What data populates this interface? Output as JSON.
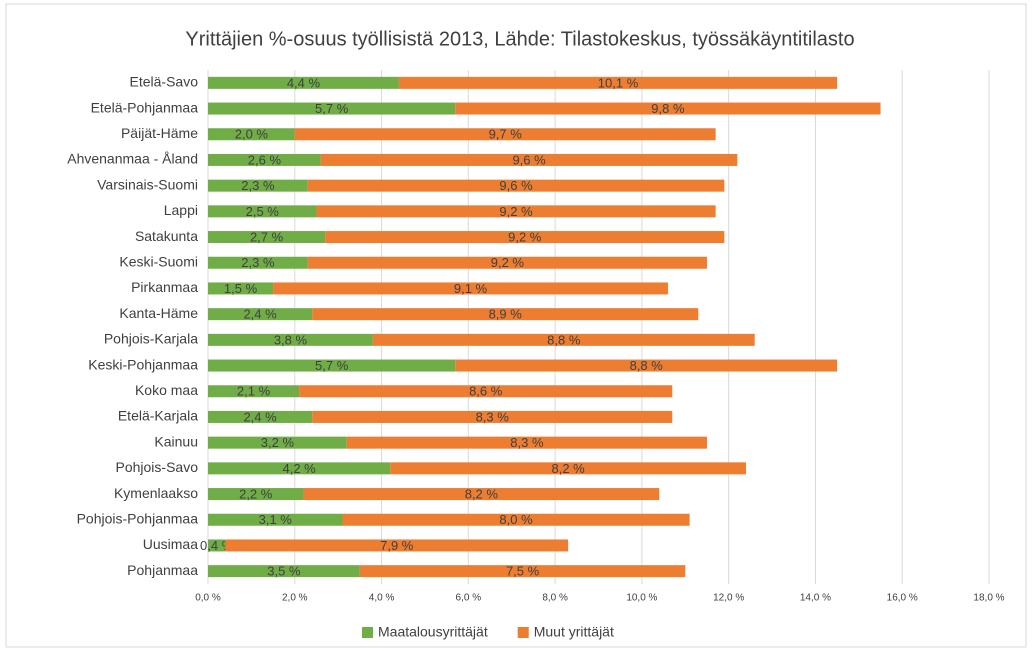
{
  "chart_data": {
    "type": "stacked-barh",
    "title": "Yrittäjien %-osuus työllisistä 2013, Lähde: Tilastokeskus, työssäkäyntitilasto",
    "categories": [
      "Etelä-Savo",
      "Etelä-Pohjanmaa",
      "Päijät-Häme",
      "Ahvenanmaa - Åland",
      "Varsinais-Suomi",
      "Lappi",
      "Satakunta",
      "Keski-Suomi",
      "Pirkanmaa",
      "Kanta-Häme",
      "Pohjois-Karjala",
      "Keski-Pohjanmaa",
      "Koko maa",
      "Etelä-Karjala",
      "Kainuu",
      "Pohjois-Savo",
      "Kymenlaakso",
      "Pohjois-Pohjanmaa",
      "Uusimaa",
      "Pohjanmaa"
    ],
    "series": [
      {
        "name": "Maatalousyrittäjät",
        "color": "#70ad47",
        "values": [
          4.4,
          5.7,
          2.0,
          2.6,
          2.3,
          2.5,
          2.7,
          2.3,
          1.5,
          2.4,
          3.8,
          5.7,
          2.1,
          2.4,
          3.2,
          4.2,
          2.2,
          3.1,
          0.4,
          3.5
        ],
        "value_labels": [
          "4,4 %",
          "5,7 %",
          "2,0 %",
          "2,6 %",
          "2,3 %",
          "2,5 %",
          "2,7 %",
          "2,3 %",
          "1,5 %",
          "2,4 %",
          "3,8 %",
          "5,7 %",
          "2,1 %",
          "2,4 %",
          "3,2 %",
          "4,2 %",
          "2,2 %",
          "3,1 %",
          "0,4 %",
          "3,5 %"
        ]
      },
      {
        "name": "Muut yrittäjät",
        "color": "#ed7d31",
        "values": [
          10.1,
          9.8,
          9.7,
          9.6,
          9.6,
          9.2,
          9.2,
          9.2,
          9.1,
          8.9,
          8.8,
          8.8,
          8.6,
          8.3,
          8.3,
          8.2,
          8.2,
          8.0,
          7.9,
          7.5
        ],
        "value_labels": [
          "10,1 %",
          "9,8 %",
          "9,7 %",
          "9,6 %",
          "9,6 %",
          "9,2 %",
          "9,2 %",
          "9,2 %",
          "9,1 %",
          "8,9 %",
          "8,8 %",
          "8,8 %",
          "8,6 %",
          "8,3 %",
          "8,3 %",
          "8,2 %",
          "8,2 %",
          "8,0 %",
          "7,9 %",
          "7,5 %"
        ]
      }
    ],
    "xlim": [
      0,
      18
    ],
    "xticks": [
      {
        "value": 0,
        "label": "0,0 %"
      },
      {
        "value": 2,
        "label": "2,0 %"
      },
      {
        "value": 4,
        "label": "4,0 %"
      },
      {
        "value": 6,
        "label": "6,0 %"
      },
      {
        "value": 8,
        "label": "8,0 %"
      },
      {
        "value": 10,
        "label": "10,0 %"
      },
      {
        "value": 12,
        "label": "12,0 %"
      },
      {
        "value": 14,
        "label": "14,0 %"
      },
      {
        "value": 16,
        "label": "16,0 %"
      },
      {
        "value": 18,
        "label": "18,0 %"
      }
    ],
    "grid": true,
    "legend": "bottom"
  }
}
